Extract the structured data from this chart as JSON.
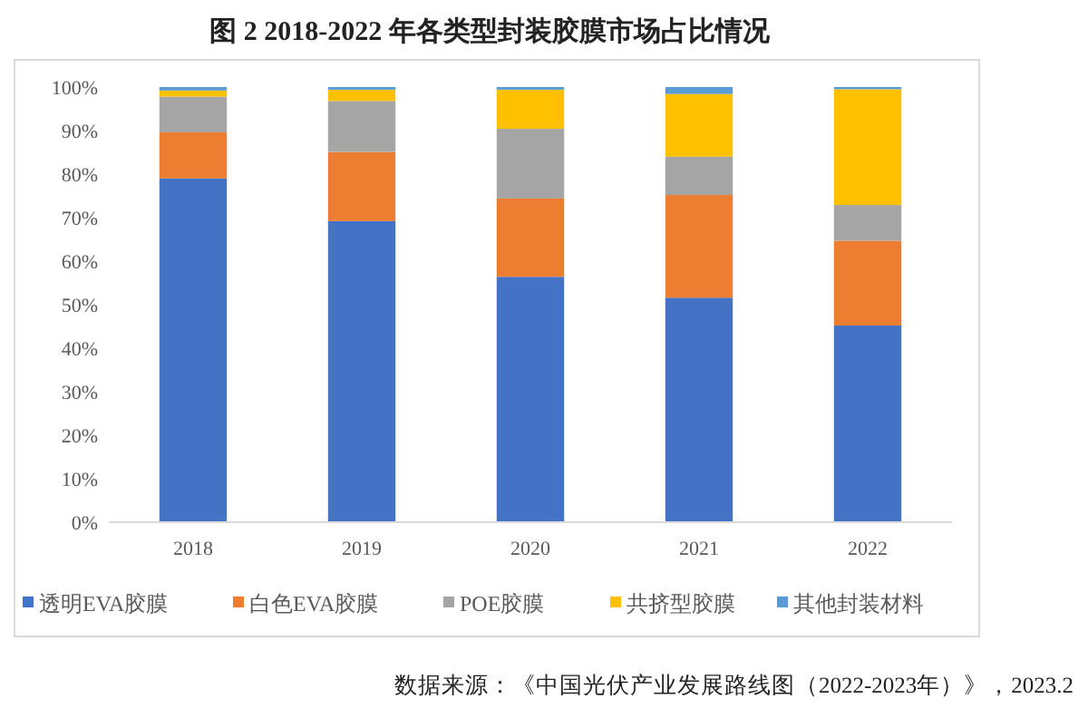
{
  "chart_data": {
    "type": "bar",
    "stacked": true,
    "title": "图 2 2018-2022 年各类型封装胶膜市场占比情况",
    "categories": [
      "2018",
      "2019",
      "2020",
      "2021",
      "2022"
    ],
    "series": [
      {
        "name": "透明EVA胶膜",
        "color": "#4472c4",
        "values": [
          79,
          69.2,
          56.4,
          51.6,
          45.2
        ]
      },
      {
        "name": "白色EVA胶膜",
        "color": "#ed7d31",
        "values": [
          10.6,
          15.9,
          18,
          23.6,
          19.5
        ]
      },
      {
        "name": "POE胶膜",
        "color": "#a5a5a5",
        "values": [
          8.2,
          11.7,
          16,
          8.8,
          8.2
        ]
      },
      {
        "name": "共挤型胶膜",
        "color": "#ffc000",
        "values": [
          1.4,
          2.6,
          9,
          14.4,
          26.6
        ]
      },
      {
        "name": "其他封装材料",
        "color": "#5b9bd5",
        "values": [
          0.8,
          0.6,
          0.6,
          1.6,
          0.5
        ]
      }
    ],
    "ylim": [
      0,
      100
    ],
    "yticks": [
      {
        "value": 0,
        "label": "0%"
      },
      {
        "value": 10,
        "label": "10%"
      },
      {
        "value": 20,
        "label": "20%"
      },
      {
        "value": 30,
        "label": "30%"
      },
      {
        "value": 40,
        "label": "40%"
      },
      {
        "value": 50,
        "label": "50%"
      },
      {
        "value": 60,
        "label": "60%"
      },
      {
        "value": 70,
        "label": "70%"
      },
      {
        "value": 80,
        "label": "80%"
      },
      {
        "value": 90,
        "label": "90%"
      },
      {
        "value": 100,
        "label": "100%"
      }
    ],
    "legend": "bottom",
    "annotations": [
      "数据来源：《中国光伏产业发展路线图（2022-2023年）》，2023.2"
    ]
  }
}
